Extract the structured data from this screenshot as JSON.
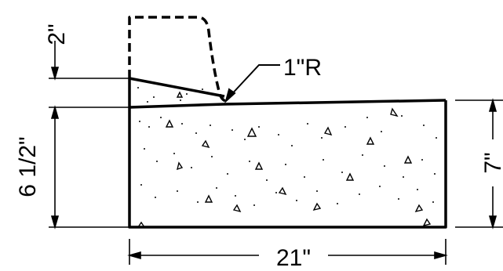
{
  "drawing": {
    "radius_label": "1\"R",
    "height_left_top_label": "2\"",
    "height_left_bottom_label": "6 1/2\"",
    "height_right_label": "7\"",
    "width_label": "21\""
  }
}
